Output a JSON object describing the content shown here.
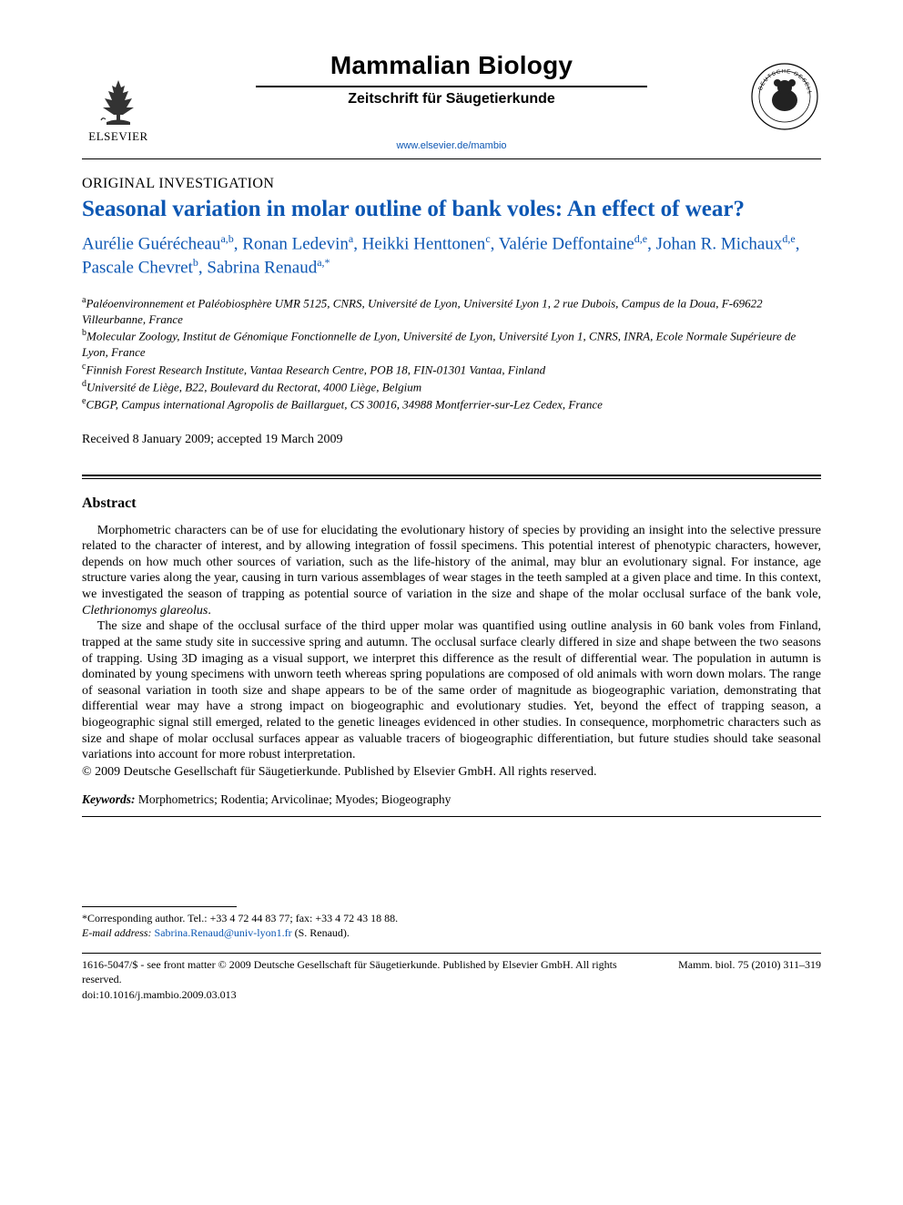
{
  "header": {
    "publisher_name": "ELSEVIER",
    "journal_title": "Mammalian Biology",
    "journal_subtitle": "Zeitschrift für Säugetierkunde",
    "journal_link": "www.elsevier.de/mambio"
  },
  "article": {
    "type": "ORIGINAL INVESTIGATION",
    "title": "Seasonal variation in molar outline of bank voles: An effect of wear?",
    "authors_html": "Aurélie Guérécheau<sup>a,b</sup>, Ronan Ledevin<sup>a</sup>, Heikki Henttonen<sup>c</sup>, Valérie Deffontaine<sup>d,e</sup>, Johan R. Michaux<sup>d,e</sup>, Pascale Chevret<sup>b</sup>, Sabrina Renaud<sup>a,*</sup>",
    "affiliations": [
      "<sup>a</sup>Paléoenvironnement et Paléobiosphère UMR 5125, CNRS, Université de Lyon, Université Lyon 1, 2 rue Dubois, Campus de la Doua, F-69622 Villeurbanne, France",
      "<sup>b</sup>Molecular Zoology, Institut de Génomique Fonctionnelle de Lyon, Université de Lyon, Université Lyon 1, CNRS, INRA, Ecole Normale Supérieure de Lyon, France",
      "<sup>c</sup>Finnish Forest Research Institute, Vantaa Research Centre, POB 18, FIN-01301 Vantaa, Finland",
      "<sup>d</sup>Université de Liège, B22, Boulevard du Rectorat, 4000 Liège, Belgium",
      "<sup>e</sup>CBGP, Campus international Agropolis de Baillarguet, CS 30016, 34988 Montferrier-sur-Lez Cedex, France"
    ],
    "dates": "Received 8 January 2009; accepted 19 March 2009"
  },
  "abstract": {
    "heading": "Abstract",
    "paragraphs": [
      "Morphometric characters can be of use for elucidating the evolutionary history of species by providing an insight into the selective pressure related to the character of interest, and by allowing integration of fossil specimens. This potential interest of phenotypic characters, however, depends on how much other sources of variation, such as the life-history of the animal, may blur an evolutionary signal. For instance, age structure varies along the year, causing in turn various assemblages of wear stages in the teeth sampled at a given place and time. In this context, we investigated the season of trapping as potential source of variation in the size and shape of the molar occlusal surface of the bank vole, <i>Clethrionomys glareolus</i>.",
      "The size and shape of the occlusal surface of the third upper molar was quantified using outline analysis in 60 bank voles from Finland, trapped at the same study site in successive spring and autumn. The occlusal surface clearly differed in size and shape between the two seasons of trapping. Using 3D imaging as a visual support, we interpret this difference as the result of differential wear. The population in autumn is dominated by young specimens with unworn teeth whereas spring populations are composed of old animals with worn down molars. The range of seasonal variation in tooth size and shape appears to be of the same order of magnitude as biogeographic variation, demonstrating that differential wear may have a strong impact on biogeographic and evolutionary studies. Yet, beyond the effect of trapping season, a biogeographic signal still emerged, related to the genetic lineages evidenced in other studies. In consequence, morphometric characters such as size and shape of molar occlusal surfaces appear as valuable tracers of biogeographic differentiation, but future studies should take seasonal variations into account for more robust interpretation."
    ],
    "copyright": "© 2009 Deutsche Gesellschaft für Säugetierkunde. Published by Elsevier GmbH. All rights reserved.",
    "keywords_label": "Keywords:",
    "keywords": " Morphometrics; Rodentia; Arvicolinae; Myodes; Biogeography"
  },
  "footnotes": {
    "corresponding": "*Corresponding author. Tel.: +33 4 72 44 83 77; fax: +33 4 72 43 18 88.",
    "email_label": "E-mail address:",
    "email": "Sabrina.Renaud@univ-lyon1.fr",
    "email_suffix": " (S. Renaud)."
  },
  "footer": {
    "issn_line": "1616-5047/$ - see front matter © 2009 Deutsche Gesellschaft für Säugetierkunde. Published by Elsevier GmbH. All rights reserved.",
    "doi": "doi:10.1016/j.mambio.2009.03.013",
    "citation": "Mamm. biol. 75 (2010) 311–319"
  },
  "colors": {
    "link_blue": "#0d57b3",
    "text": "#000000",
    "background": "#ffffff"
  },
  "typography": {
    "body_family": "Times New Roman",
    "sans_family": "Trebuchet MS",
    "journal_title_pt": 28,
    "article_title_pt": 25,
    "authors_pt": 19,
    "body_pt": 14,
    "footnote_pt": 12
  }
}
